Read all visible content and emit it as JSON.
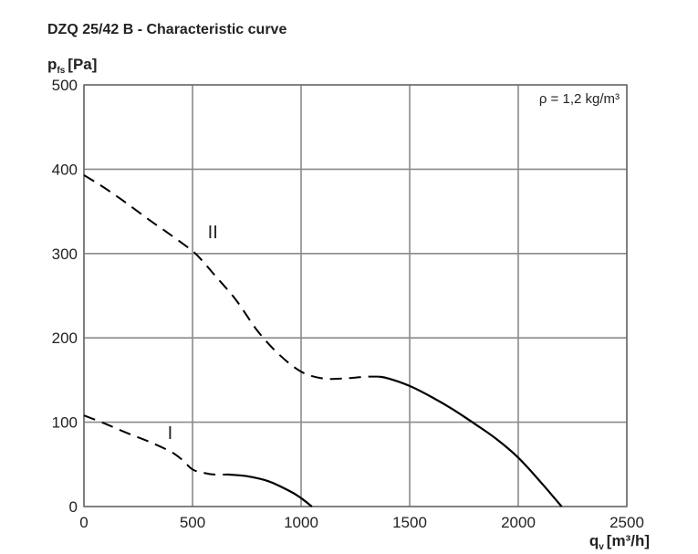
{
  "title": "DZQ 25/42 B - Characteristic curve",
  "chart_data": {
    "type": "line",
    "title": "DZQ 25/42 B - Characteristic curve",
    "ylabel": {
      "main": "p",
      "sub": "fs",
      "unit": "[Pa]"
    },
    "xlabel": {
      "main": "q",
      "sub": "v",
      "unit": "[m³/h]"
    },
    "xlim": [
      0,
      2500
    ],
    "ylim": [
      0,
      500
    ],
    "xticks": [
      0,
      500,
      1000,
      1500,
      2000,
      2500
    ],
    "yticks": [
      0,
      100,
      200,
      300,
      400,
      500
    ],
    "grid": true,
    "annotation": "ρ = 1,2 kg/m³",
    "series": [
      {
        "name": "I",
        "stroke": "#000000",
        "dashed_segment": [
          [
            0,
            108
          ],
          [
            100,
            98
          ],
          [
            200,
            87
          ],
          [
            300,
            77
          ],
          [
            400,
            65
          ],
          [
            450,
            56
          ],
          [
            500,
            44
          ],
          [
            550,
            40
          ],
          [
            600,
            38
          ],
          [
            660,
            38
          ]
        ],
        "solid_segment": [
          [
            660,
            38
          ],
          [
            750,
            36
          ],
          [
            850,
            30
          ],
          [
            950,
            18
          ],
          [
            1000,
            10
          ],
          [
            1050,
            0
          ]
        ],
        "label_at": [
          385,
          80
        ]
      },
      {
        "name": "II",
        "stroke": "#000000",
        "dashed_segment": [
          [
            0,
            393
          ],
          [
            100,
            377
          ],
          [
            200,
            359
          ],
          [
            300,
            340
          ],
          [
            400,
            322
          ],
          [
            500,
            303
          ],
          [
            550,
            290
          ],
          [
            600,
            275
          ],
          [
            700,
            245
          ],
          [
            800,
            208
          ],
          [
            900,
            180
          ],
          [
            1000,
            160
          ],
          [
            1100,
            152
          ],
          [
            1200,
            152
          ],
          [
            1300,
            154
          ],
          [
            1360,
            154
          ]
        ],
        "solid_segment": [
          [
            1360,
            154
          ],
          [
            1400,
            152
          ],
          [
            1500,
            143
          ],
          [
            1600,
            130
          ],
          [
            1700,
            115
          ],
          [
            1800,
            98
          ],
          [
            1900,
            80
          ],
          [
            2000,
            58
          ],
          [
            2100,
            30
          ],
          [
            2200,
            0
          ]
        ],
        "label_at": [
          570,
          318
        ]
      }
    ]
  }
}
